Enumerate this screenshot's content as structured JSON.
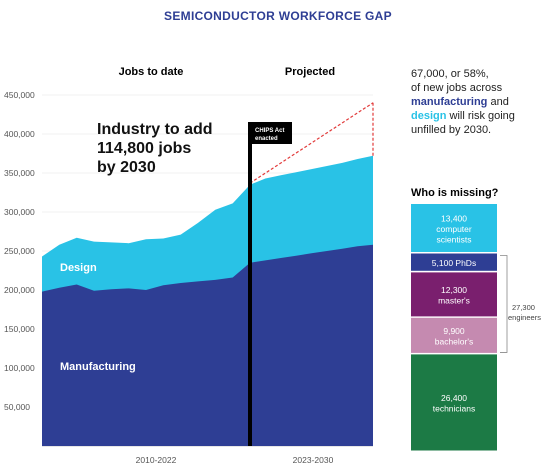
{
  "title": "SEMICONDUCTOR WORKFORCE GAP",
  "colors": {
    "manufacturing": "#2e3e94",
    "design": "#29c2e6",
    "projection_line": "#e23b3b",
    "title": "#2e3e94",
    "computer_scientists": "#29c2e6",
    "phds": "#2e3e94",
    "masters": "#7a1f6e",
    "bachelors": "#c58ab0",
    "technicians": "#1c7a45"
  },
  "chart_data": [
    {
      "type": "area",
      "stacked": true,
      "section_labels": [
        "Jobs to date",
        "Projected"
      ],
      "annotation": [
        "Industry to add",
        "114,800 jobs",
        "by 2030"
      ],
      "marker_label": [
        "CHIPS Act",
        "enacted"
      ],
      "x_labels": [
        "2010-2022",
        "2023-2030"
      ],
      "ylim": [
        0,
        450000
      ],
      "yticks": [
        "450,000",
        "400,000",
        "350,000",
        "300,000",
        "250,000",
        "200,000",
        "150,000",
        "100,000",
        "50,000"
      ],
      "ytick_values": [
        450000,
        400000,
        350000,
        300000,
        250000,
        200000,
        150000,
        100000,
        50000
      ],
      "x": [
        2010,
        2011,
        2012,
        2013,
        2014,
        2015,
        2016,
        2017,
        2018,
        2019,
        2020,
        2021,
        2022,
        2023,
        2024,
        2025,
        2026,
        2027,
        2028,
        2029,
        2030
      ],
      "x_section_split": [
        2010,
        2022,
        2030
      ],
      "series": [
        {
          "name": "Manufacturing",
          "values": [
            198000,
            203000,
            207000,
            199000,
            201000,
            202000,
            200000,
            206000,
            209000,
            211000,
            213000,
            216000,
            235000,
            238000,
            241000,
            244000,
            247000,
            250000,
            253000,
            256000,
            258000
          ]
        },
        {
          "name": "Design",
          "values": [
            45000,
            55000,
            60000,
            63000,
            60000,
            58000,
            65000,
            60000,
            62000,
            75000,
            90000,
            95000,
            100000,
            105000,
            106000,
            107000,
            108000,
            109000,
            110000,
            112000,
            114000
          ]
        }
      ],
      "projection_upper": [
        337000,
        440000
      ]
    },
    {
      "type": "bar",
      "stacked": true,
      "title": "Who is missing?",
      "note": [
        "67,000, or 58%,",
        "of new jobs across",
        "manufacturing and",
        "design will risk going",
        "unfilled by 2030."
      ],
      "note_highlights": {
        "manufacturing": "manufacturing",
        "design": "design"
      },
      "segments": [
        {
          "name": "technicians",
          "value": 26400,
          "label": [
            "26,400",
            "technicians"
          ]
        },
        {
          "name": "bachelors",
          "value": 9900,
          "label": [
            "9,900",
            "bachelor's"
          ]
        },
        {
          "name": "masters",
          "value": 12300,
          "label": [
            "12,300",
            "master's"
          ]
        },
        {
          "name": "phds",
          "value": 5100,
          "label": [
            "5,100 PhDs"
          ]
        },
        {
          "name": "computer_scientists",
          "value": 13400,
          "label": [
            "13,400",
            "computer",
            "scientists"
          ]
        }
      ],
      "bracket_label": [
        "27,300",
        "engineers"
      ]
    }
  ]
}
